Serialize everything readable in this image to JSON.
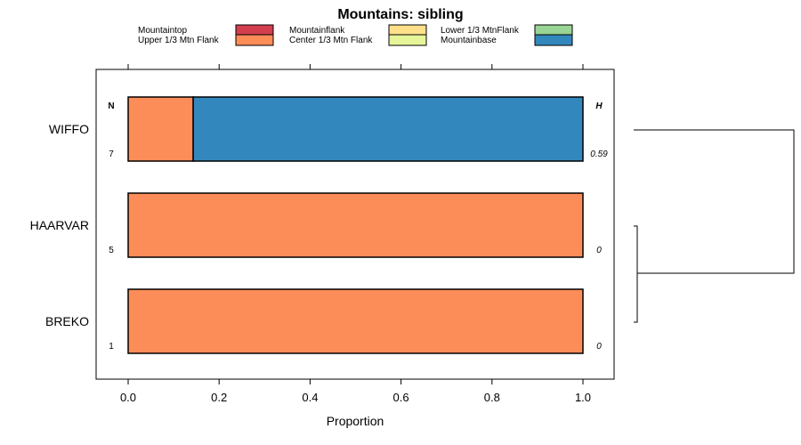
{
  "chart_data": {
    "type": "bar",
    "orientation": "horizontal",
    "stacked": true,
    "title": "Mountains: sibling",
    "xlabel": "Proportion",
    "ylabel": "",
    "xlim": [
      -0.07,
      1.07
    ],
    "xticks": [
      0.0,
      0.2,
      0.4,
      0.6,
      0.8,
      1.0
    ],
    "xtick_labels": [
      "0.0",
      "0.2",
      "0.4",
      "0.6",
      "0.8",
      "1.0"
    ],
    "categories": [
      "WIFFO",
      "HAARVAR",
      "BREKO"
    ],
    "series": [
      {
        "name": "Mountaintop",
        "color": "#d53e4f",
        "values": [
          0,
          0,
          0
        ]
      },
      {
        "name": "Upper 1/3 Mtn Flank",
        "color": "#fc8d59",
        "values": [
          0.143,
          1.0,
          1.0
        ]
      },
      {
        "name": "Mountainflank",
        "color": "#fee08b",
        "values": [
          0,
          0,
          0
        ]
      },
      {
        "name": "Center 1/3 Mtn Flank",
        "color": "#e6f598",
        "values": [
          0,
          0,
          0
        ]
      },
      {
        "name": "Lower 1/3 MtnFlank",
        "color": "#99d594",
        "values": [
          0,
          0,
          0
        ]
      },
      {
        "name": "Mountainbase",
        "color": "#3288bd",
        "values": [
          0.857,
          0,
          0
        ]
      }
    ],
    "n_header": "N",
    "h_header": "H",
    "n_values": [
      "7",
      "5",
      "1"
    ],
    "h_values": [
      "0.59",
      "0",
      "0"
    ],
    "legend_position": "top",
    "dendrogram": "right"
  }
}
